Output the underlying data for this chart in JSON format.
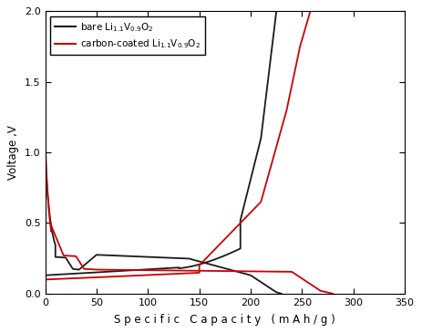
{
  "xlabel_spaced": "S p e c i f i c   C a p a c i t y   ( m A h / g )",
  "ylabel": "Voltage ,V",
  "xlim": [
    0,
    350
  ],
  "ylim": [
    0,
    2.0
  ],
  "xticks": [
    0,
    50,
    100,
    150,
    200,
    250,
    300,
    350
  ],
  "yticks": [
    0.0,
    0.5,
    1.0,
    1.5,
    2.0
  ],
  "bare_color": "#1a1a1a",
  "carbon_color": "#cc0000",
  "figsize": [
    4.63,
    3.65
  ],
  "dpi": 100
}
